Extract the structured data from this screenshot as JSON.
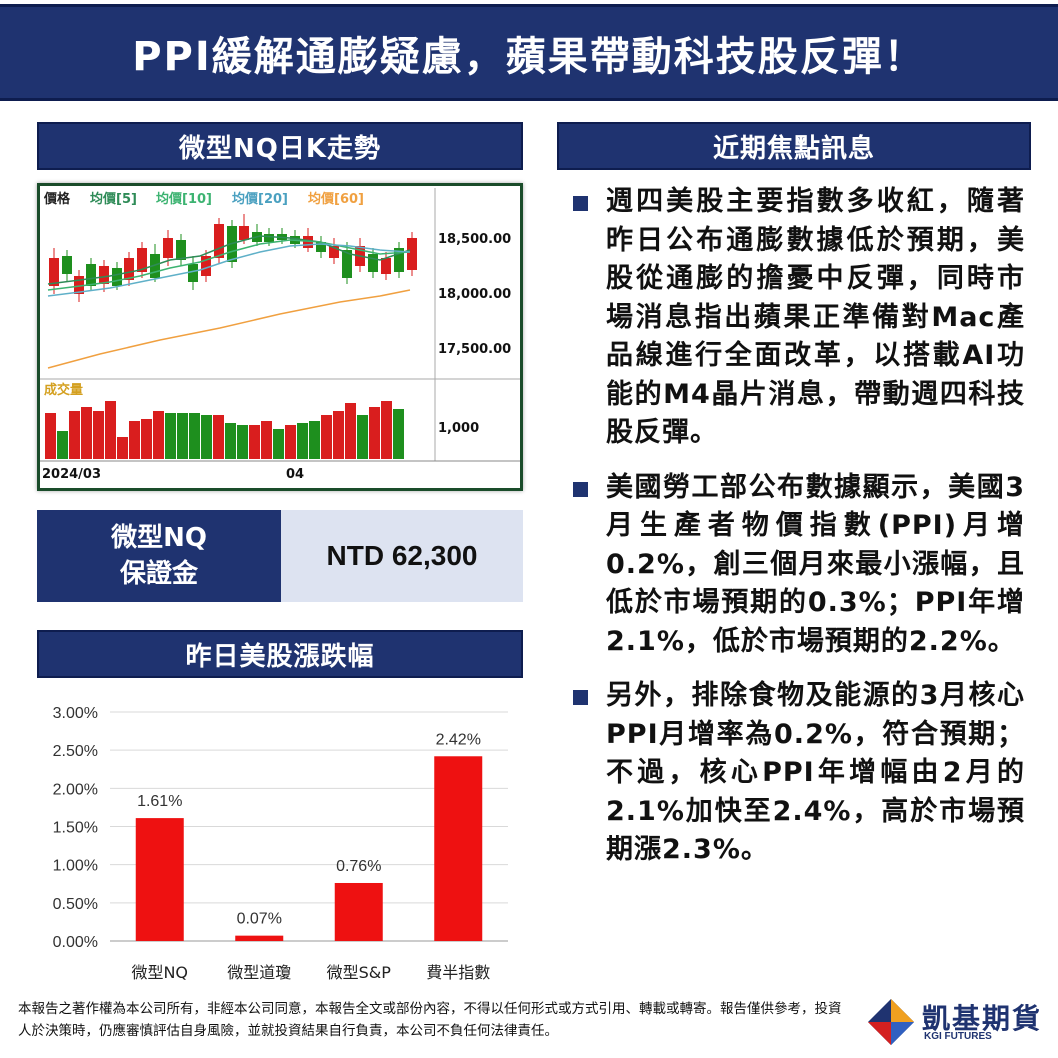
{
  "title": "PPI緩解通膨疑慮，蘋果帶動科技股反彈！",
  "kchart_section": {
    "heading": "微型NQ日K走勢",
    "price_label": "價格",
    "ma5_label": "均價[5]",
    "ma10_label": "均價[10]",
    "ma20_label": "均價[20]",
    "ma60_label": "均價[60]",
    "y_ticks": [
      "18,500.00",
      "18,000.00",
      "17,500.00"
    ],
    "volume_label": "成交量",
    "volume_tick": "1,000",
    "x_labels": [
      "2024/03",
      "04"
    ],
    "colors": {
      "up": "#d91e1e",
      "down": "#1e8f1e",
      "ma5": "#2e8b57",
      "ma10": "#3cb371",
      "ma20": "#5fb0c8",
      "ma60": "#f0a040"
    }
  },
  "margin": {
    "label_line1": "微型NQ",
    "label_line2": "保證金",
    "value": "NTD 62,300"
  },
  "bar_section": {
    "heading": "昨日美股漲跌幅"
  },
  "news_section": {
    "heading": "近期焦點訊息",
    "items": [
      "週四美股主要指數多收紅，隨著昨日公布通膨數據低於預期，美股從通膨的擔憂中反彈，同時市場消息指出蘋果正準備對Mac產品線進行全面改革，以搭載AI功能的M4晶片消息，帶動週四科技股反彈。",
      "美國勞工部公布數據顯示，美國3月生產者物價指數(PPI)月增0.2%，創三個月來最小漲幅，且低於市場預期的0.3%；PPI年增2.1%，低於市場預期的2.2%。",
      "另外，排除食物及能源的3月核心PPI月增率為0.2%，符合預期；不過，核心PPI年增幅由2月的2.1%加快至2.4%，高於市場預期漲2.3%。"
    ]
  },
  "footer": {
    "disclaimer": "本報告之著作權為本公司所有，非經本公司同意，本報告全文或部份內容，不得以任何形式或方式引用、轉載或轉寄。報告僅供參考，投資人於決策時，仍應審慎評估自身風險，並就投資結果自行負責，本公司不負任何法律責任。",
    "logo_name": "凱基期貨",
    "logo_sub": "KGI FUTURES"
  },
  "chart_data": {
    "type": "bar",
    "categories": [
      "微型NQ",
      "微型道瓊",
      "微型S&P",
      "費半指數"
    ],
    "values": [
      1.61,
      0.07,
      0.76,
      2.42
    ],
    "value_labels": [
      "1.61%",
      "0.07%",
      "0.76%",
      "2.42%"
    ],
    "y_ticks": [
      "0.00%",
      "0.50%",
      "1.00%",
      "1.50%",
      "2.00%",
      "2.50%",
      "3.00%"
    ],
    "ylim": [
      0,
      3
    ],
    "bar_color": "#ee1111",
    "grid": true
  }
}
